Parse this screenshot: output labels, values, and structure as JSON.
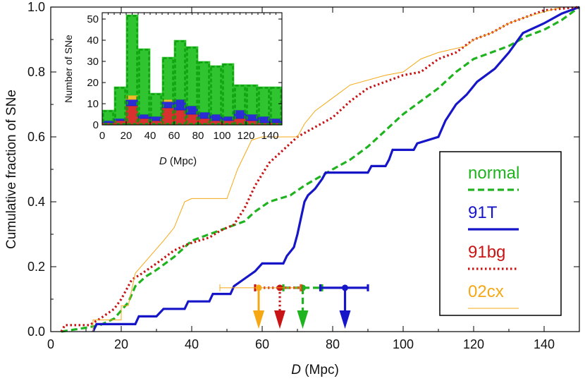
{
  "chart_data": [
    {
      "type": "line",
      "kind": "cumulative-step",
      "xlabel_var": "D",
      "xlabel_unit": " (Mpc)",
      "ylabel": "Cumulative  fraction  of  SNe",
      "xlim": [
        0,
        150
      ],
      "ylim": [
        0,
        1.0
      ],
      "xticks": [
        0,
        20,
        40,
        60,
        80,
        100,
        120,
        140
      ],
      "yticks": [
        0.0,
        0.2,
        0.4,
        0.6,
        0.8,
        1.0
      ],
      "grid": false,
      "legend": "right",
      "series": [
        {
          "name": "normal",
          "color": "#1fb31f",
          "style": "dashed",
          "points": [
            [
              3,
              0
            ],
            [
              10,
              0.012
            ],
            [
              14,
              0.02
            ],
            [
              18,
              0.04
            ],
            [
              22,
              0.09
            ],
            [
              24,
              0.14
            ],
            [
              27,
              0.17
            ],
            [
              30,
              0.19
            ],
            [
              35,
              0.23
            ],
            [
              40,
              0.28
            ],
            [
              45,
              0.3
            ],
            [
              50,
              0.32
            ],
            [
              55,
              0.34
            ],
            [
              58,
              0.37
            ],
            [
              62,
              0.4
            ],
            [
              68,
              0.42
            ],
            [
              72,
              0.45
            ],
            [
              80,
              0.5
            ],
            [
              85,
              0.53
            ],
            [
              90,
              0.57
            ],
            [
              95,
              0.62
            ],
            [
              100,
              0.67
            ],
            [
              105,
              0.71
            ],
            [
              110,
              0.75
            ],
            [
              115,
              0.8
            ],
            [
              120,
              0.84
            ],
            [
              125,
              0.86
            ],
            [
              130,
              0.88
            ],
            [
              135,
              0.91
            ],
            [
              140,
              0.93
            ],
            [
              145,
              0.96
            ],
            [
              150,
              1.0
            ]
          ]
        },
        {
          "name": "91T",
          "color": "#1616c8",
          "style": "solid",
          "points": [
            [
              12,
              0
            ],
            [
              13,
              0.023
            ],
            [
              24,
              0.023
            ],
            [
              25,
              0.047
            ],
            [
              30,
              0.047
            ],
            [
              32,
              0.07
            ],
            [
              38,
              0.07
            ],
            [
              39,
              0.093
            ],
            [
              45,
              0.093
            ],
            [
              46,
              0.116
            ],
            [
              51,
              0.116
            ],
            [
              52,
              0.14
            ],
            [
              55,
              0.163
            ],
            [
              58,
              0.186
            ],
            [
              60,
              0.21
            ],
            [
              66,
              0.21
            ],
            [
              67,
              0.233
            ],
            [
              69,
              0.26
            ],
            [
              70,
              0.3
            ],
            [
              71,
              0.35
            ],
            [
              72,
              0.4
            ],
            [
              73,
              0.42
            ],
            [
              75,
              0.44
            ],
            [
              77,
              0.47
            ],
            [
              78,
              0.49
            ],
            [
              90,
              0.49
            ],
            [
              91,
              0.51
            ],
            [
              95,
              0.51
            ],
            [
              96,
              0.53
            ],
            [
              97,
              0.56
            ],
            [
              103,
              0.56
            ],
            [
              104,
              0.58
            ],
            [
              110,
              0.6
            ],
            [
              112,
              0.65
            ],
            [
              115,
              0.7
            ],
            [
              118,
              0.73
            ],
            [
              121,
              0.77
            ],
            [
              126,
              0.81
            ],
            [
              130,
              0.86
            ],
            [
              134,
              0.92
            ],
            [
              140,
              0.95
            ],
            [
              145,
              0.98
            ],
            [
              150,
              1.0
            ]
          ]
        },
        {
          "name": "91bg",
          "color": "#c81414",
          "style": "dotted",
          "points": [
            [
              3,
              0
            ],
            [
              4,
              0.02
            ],
            [
              11,
              0.02
            ],
            [
              14,
              0.04
            ],
            [
              18,
              0.07
            ],
            [
              20,
              0.1
            ],
            [
              23,
              0.16
            ],
            [
              26,
              0.18
            ],
            [
              30,
              0.21
            ],
            [
              35,
              0.25
            ],
            [
              39,
              0.27
            ],
            [
              45,
              0.29
            ],
            [
              48,
              0.31
            ],
            [
              52,
              0.33
            ],
            [
              55,
              0.38
            ],
            [
              58,
              0.45
            ],
            [
              62,
              0.52
            ],
            [
              65,
              0.55
            ],
            [
              70,
              0.6
            ],
            [
              75,
              0.63
            ],
            [
              80,
              0.66
            ],
            [
              85,
              0.71
            ],
            [
              90,
              0.75
            ],
            [
              95,
              0.77
            ],
            [
              100,
              0.79
            ],
            [
              105,
              0.8
            ],
            [
              110,
              0.84
            ],
            [
              115,
              0.86
            ],
            [
              120,
              0.9
            ],
            [
              125,
              0.92
            ],
            [
              130,
              0.95
            ],
            [
              140,
              0.99
            ],
            [
              150,
              1.0
            ]
          ]
        },
        {
          "name": "02cx",
          "color": "#f5a814",
          "style": "thin",
          "points": [
            [
              3,
              0
            ],
            [
              12,
              0
            ],
            [
              12,
              0.036
            ],
            [
              20,
              0.036
            ],
            [
              20,
              0.08
            ],
            [
              22,
              0.08
            ],
            [
              24,
              0.18
            ],
            [
              28,
              0.23
            ],
            [
              32,
              0.28
            ],
            [
              35,
              0.32
            ],
            [
              38,
              0.4
            ],
            [
              40,
              0.41
            ],
            [
              50,
              0.41
            ],
            [
              53,
              0.5
            ],
            [
              57,
              0.59
            ],
            [
              60,
              0.6
            ],
            [
              70,
              0.6
            ],
            [
              72,
              0.64
            ],
            [
              75,
              0.68
            ],
            [
              80,
              0.72
            ],
            [
              85,
              0.76
            ],
            [
              95,
              0.79
            ],
            [
              100,
              0.8
            ],
            [
              105,
              0.84
            ],
            [
              110,
              0.86
            ],
            [
              118,
              0.88
            ],
            [
              120,
              0.9
            ],
            [
              125,
              0.92
            ],
            [
              130,
              0.95
            ],
            [
              135,
              0.97
            ],
            [
              145,
              1.0
            ],
            [
              150,
              1.0
            ]
          ]
        }
      ],
      "error_bars": [
        {
          "series": "normal",
          "x": 71.5,
          "xmin": 66,
          "xmax": 77,
          "y": 0.135
        },
        {
          "series": "91T",
          "x": 83.5,
          "xmin": 76.5,
          "xmax": 90,
          "y": 0.135
        },
        {
          "series": "91bg",
          "x": 65,
          "xmin": 58,
          "xmax": 71,
          "y": 0.135
        },
        {
          "series": "02cx",
          "x": 59,
          "xmin": 48,
          "xmax": 71,
          "y": 0.135
        }
      ]
    },
    {
      "type": "bar",
      "kind": "stacked-histogram",
      "xlabel_var": "D",
      "xlabel_unit": " (Mpc)",
      "ylabel": "Number  of  SNe",
      "xlim": [
        0,
        150
      ],
      "ylim": [
        0,
        53
      ],
      "xticks": [
        0,
        20,
        40,
        60,
        80,
        100,
        120,
        140
      ],
      "yticks": [
        0,
        10,
        20,
        30,
        40,
        50
      ],
      "bin_width": 10,
      "bin_starts": [
        0,
        10,
        20,
        30,
        40,
        50,
        60,
        70,
        80,
        90,
        100,
        110,
        120,
        130,
        140
      ],
      "series": [
        {
          "name": "91bg",
          "color": "#d81e1e",
          "values": [
            1,
            2,
            9,
            3,
            2,
            8,
            7,
            5,
            3,
            2,
            2,
            3,
            2,
            1,
            1
          ]
        },
        {
          "name": "91T",
          "color": "#1a1ad0",
          "values": [
            1,
            1,
            3,
            2,
            2,
            3,
            5,
            4,
            3,
            3,
            2,
            4,
            3,
            3,
            2
          ]
        },
        {
          "name": "02cx",
          "color": "#f0b418",
          "values": [
            0,
            0,
            2,
            0,
            0,
            1,
            0,
            0,
            0,
            0,
            0,
            0,
            0,
            0,
            0
          ]
        },
        {
          "name": "normal",
          "color": "#1fbf1f",
          "values": [
            5,
            15,
            38,
            31,
            11,
            20,
            28,
            28,
            24,
            23,
            25,
            12,
            14,
            14,
            15
          ]
        }
      ]
    }
  ]
}
